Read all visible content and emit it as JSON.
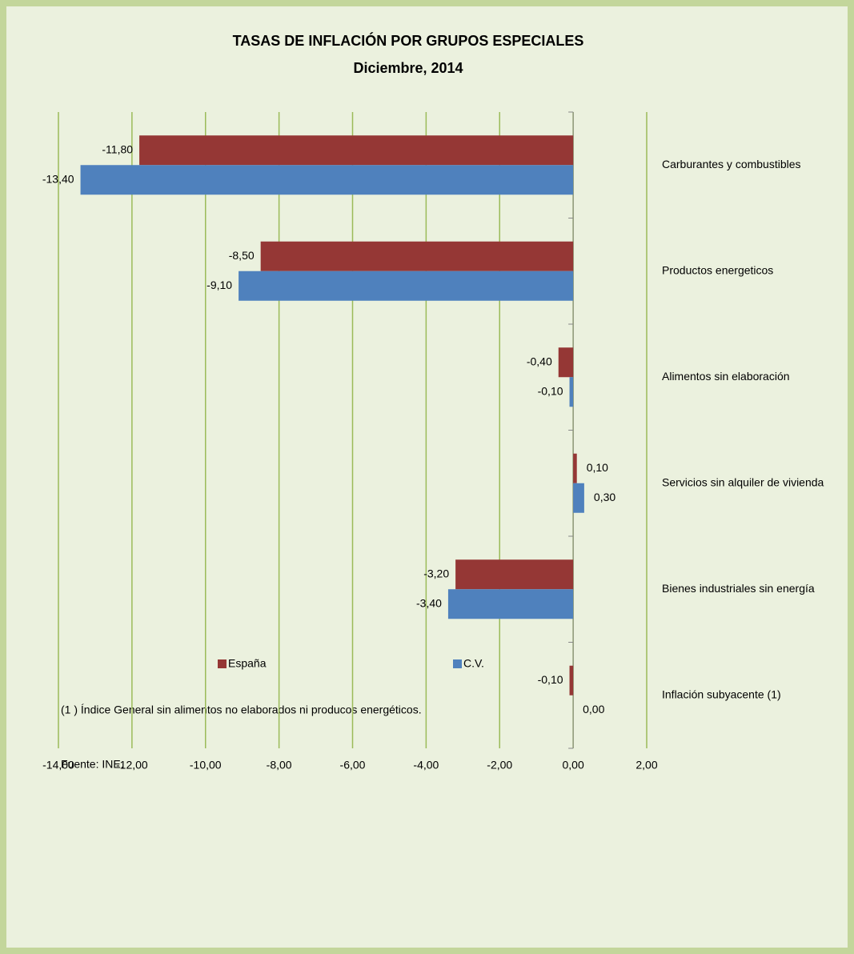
{
  "chart_data": {
    "type": "hbar",
    "title": "TASAS DE INFLACIÓN POR GRUPOS ESPECIALES",
    "subtitle": "Diciembre, 2014",
    "categories": [
      "Carburantes y combustibles",
      "Productos energeticos",
      "Alimentos sin elaboración",
      "Servicios sin alquiler de vivienda",
      "Bienes industriales sin energía",
      "Inflación subyacente (1)"
    ],
    "series": [
      {
        "name": "España",
        "color": "#953735",
        "values": [
          -11.8,
          -8.5,
          -0.4,
          0.1,
          -3.2,
          -0.1
        ],
        "value_labels": [
          "-11,80",
          "-8,50",
          "-0,40",
          "0,10",
          "-3,20",
          "-0,10"
        ]
      },
      {
        "name": "C.V.",
        "color": "#4f81bd",
        "values": [
          -13.4,
          -9.1,
          -0.1,
          0.3,
          -3.4,
          0
        ],
        "value_labels": [
          "-13,40",
          "-9,10",
          "-0,10",
          "0,30",
          "-3,40",
          "0,00"
        ]
      }
    ],
    "xlim": [
      -14,
      2
    ],
    "xticks": [
      {
        "value": -14,
        "label": "-14,00"
      },
      {
        "value": -12,
        "label": "-12,00"
      },
      {
        "value": -10,
        "label": "-10,00"
      },
      {
        "value": -8,
        "label": "-8,00"
      },
      {
        "value": -6,
        "label": "-6,00"
      },
      {
        "value": -4,
        "label": "-4,00"
      },
      {
        "value": -2,
        "label": "-2,00"
      },
      {
        "value": 0,
        "label": "0,00"
      },
      {
        "value": 2,
        "label": "2,00"
      }
    ],
    "grid": true,
    "legend": "bottom",
    "notes": [
      "(1 ) Índice General sin alimentos no elaborados ni producos energéticos.",
      "Fuente: INE."
    ]
  }
}
